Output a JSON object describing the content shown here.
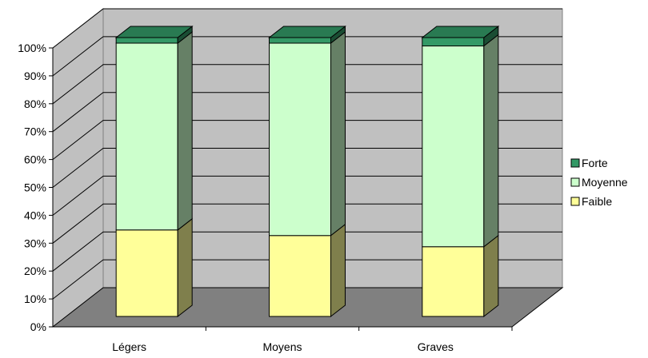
{
  "chart_data": {
    "type": "bar",
    "stacked": "percent",
    "three_d": true,
    "categories": [
      "Légers",
      "Moyens",
      "Graves"
    ],
    "series": [
      {
        "name": "Faible",
        "values": [
          31,
          29,
          25
        ]
      },
      {
        "name": "Moyenne",
        "values": [
          67,
          69,
          72
        ]
      },
      {
        "name": "Forte",
        "values": [
          2,
          2,
          3
        ]
      }
    ],
    "yaxis": {
      "ticks": [
        "0%",
        "10%",
        "20%",
        "30%",
        "40%",
        "50%",
        "60%",
        "70%",
        "80%",
        "90%",
        "100%"
      ],
      "range": [
        0,
        100
      ]
    },
    "grid": true,
    "legend": {
      "position": "right",
      "order": [
        "Forte",
        "Moyenne",
        "Faible"
      ]
    },
    "colors": {
      "Faible": {
        "front": "#ffff99",
        "side": "#7f7f4c",
        "top": "#cccc7a"
      },
      "Moyenne": {
        "front": "#ccffcc",
        "side": "#668066",
        "top": "#a3cca3"
      },
      "Forte": {
        "front": "#339966",
        "side": "#1a4d33",
        "top": "#297a52"
      },
      "wall": "#c0c0c0",
      "floor": "#808080",
      "gridline": "#000000"
    }
  }
}
